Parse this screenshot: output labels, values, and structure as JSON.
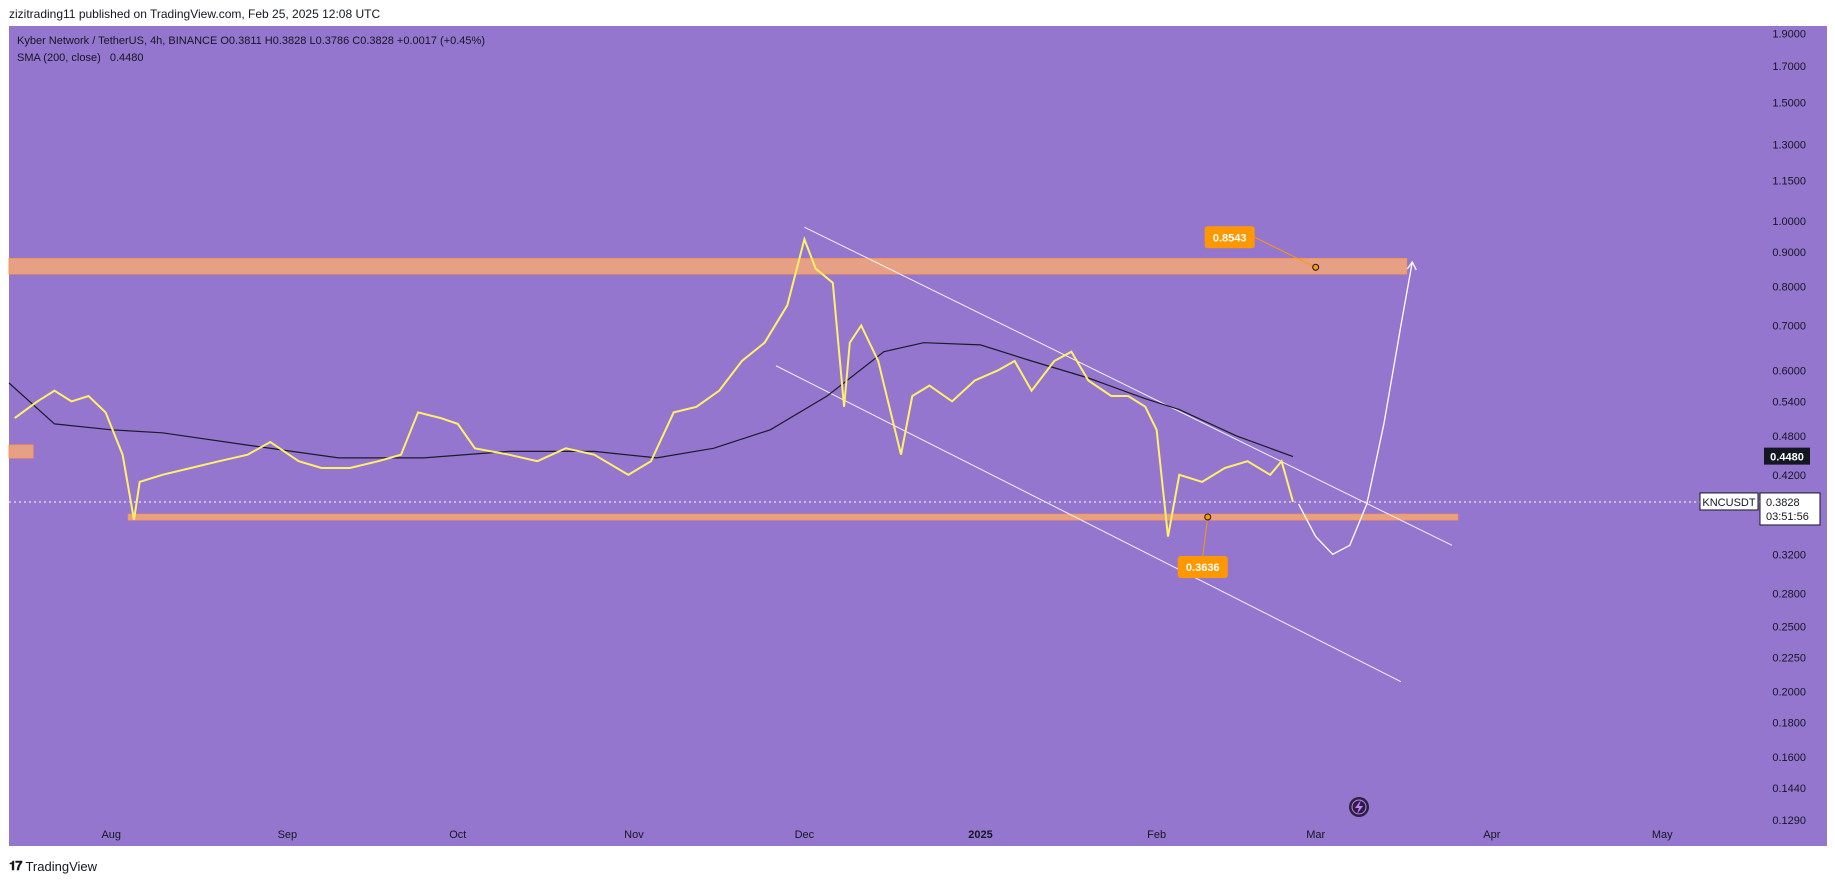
{
  "publisher_line": "zizitrading11 published on TradingView.com, Feb 25, 2025 12:08 UTC",
  "brand": "TradingView",
  "legend": {
    "symbol_line": "Kyber Network / TetherUS, 4h, BINANCE O0.3811 H0.3828 L0.3786 C0.3828 +0.0017 (+0.45%)",
    "sma_label": "SMA (200, close)",
    "sma_value": "0.4480"
  },
  "symbol_tag": "KNCUSDT",
  "last_price": "0.3828",
  "countdown": "03:51:56",
  "sma_price_tag": "0.4480",
  "annotations": {
    "target_label": "0.8543",
    "support_label": "0.3636"
  },
  "colors": {
    "background": "#9576cf",
    "candles": "#fff06b",
    "zones": "#f5a878",
    "label_bg": "#ff9800",
    "sma": "#1b1b2a",
    "channel": "#ffffff"
  },
  "chart_data": {
    "type": "line",
    "y_scale": "log",
    "ylim": [
      0.118,
      1.95
    ],
    "y_ticks": [
      "1.9000",
      "1.7000",
      "1.5000",
      "1.3000",
      "1.1500",
      "1.0000",
      "0.9000",
      "0.8000",
      "0.7000",
      "0.6000",
      "0.5400",
      "0.4800",
      "0.4200",
      "0.3600",
      "0.3200",
      "0.2800",
      "0.2500",
      "0.2250",
      "0.2000",
      "0.1800",
      "0.1600",
      "0.1440",
      "0.1290"
    ],
    "x_ticks": [
      "Aug",
      "Sep",
      "Oct",
      "Nov",
      "Dec",
      "2025",
      "Feb",
      "Mar",
      "Apr",
      "May"
    ],
    "x_tick_dates": [
      "2024-08-01",
      "2024-09-01",
      "2024-10-01",
      "2024-11-01",
      "2024-12-01",
      "2025-01-01",
      "2025-02-01",
      "2025-03-01",
      "2025-04-01",
      "2025-05-01"
    ],
    "x_range": [
      "2024-07-14",
      "2025-05-30"
    ],
    "series": [
      {
        "role": "price",
        "dates": [
          "2024-07-15",
          "2024-07-19",
          "2024-07-22",
          "2024-07-25",
          "2024-07-28",
          "2024-07-31",
          "2024-08-03",
          "2024-08-05",
          "2024-08-06",
          "2024-08-10",
          "2024-08-15",
          "2024-08-20",
          "2024-08-25",
          "2024-08-29",
          "2024-09-03",
          "2024-09-07",
          "2024-09-12",
          "2024-09-17",
          "2024-09-21",
          "2024-09-24",
          "2024-09-28",
          "2024-10-01",
          "2024-10-04",
          "2024-10-10",
          "2024-10-15",
          "2024-10-20",
          "2024-10-25",
          "2024-10-31",
          "2024-11-04",
          "2024-11-08",
          "2024-11-12",
          "2024-11-16",
          "2024-11-20",
          "2024-11-24",
          "2024-11-28",
          "2024-12-01",
          "2024-12-03",
          "2024-12-06",
          "2024-12-08",
          "2024-12-09",
          "2024-12-11",
          "2024-12-14",
          "2024-12-18",
          "2024-12-20",
          "2024-12-23",
          "2024-12-27",
          "2024-12-31",
          "2025-01-04",
          "2025-01-07",
          "2025-01-10",
          "2025-01-14",
          "2025-01-17",
          "2025-01-20",
          "2025-01-24",
          "2025-01-27",
          "2025-01-30",
          "2025-02-01",
          "2025-02-03",
          "2025-02-05",
          "2025-02-09",
          "2025-02-13",
          "2025-02-17",
          "2025-02-21",
          "2025-02-23",
          "2025-02-25"
        ],
        "values": [
          0.51,
          0.54,
          0.56,
          0.54,
          0.55,
          0.52,
          0.45,
          0.36,
          0.41,
          0.42,
          0.43,
          0.44,
          0.45,
          0.47,
          0.44,
          0.43,
          0.43,
          0.44,
          0.45,
          0.52,
          0.51,
          0.5,
          0.46,
          0.45,
          0.44,
          0.46,
          0.45,
          0.42,
          0.44,
          0.52,
          0.53,
          0.56,
          0.62,
          0.66,
          0.75,
          0.94,
          0.85,
          0.81,
          0.53,
          0.66,
          0.7,
          0.62,
          0.45,
          0.55,
          0.57,
          0.54,
          0.58,
          0.6,
          0.62,
          0.56,
          0.62,
          0.64,
          0.58,
          0.55,
          0.55,
          0.53,
          0.49,
          0.34,
          0.42,
          0.41,
          0.43,
          0.44,
          0.42,
          0.44,
          0.383
        ]
      },
      {
        "role": "sma",
        "dates": [
          "2024-07-14",
          "2024-07-22",
          "2024-08-01",
          "2024-08-10",
          "2024-08-25",
          "2024-09-10",
          "2024-09-25",
          "2024-10-10",
          "2024-10-25",
          "2024-11-05",
          "2024-11-15",
          "2024-11-25",
          "2024-12-05",
          "2024-12-15",
          "2024-12-22",
          "2025-01-01",
          "2025-01-10",
          "2025-01-20",
          "2025-01-30",
          "2025-02-05",
          "2025-02-15",
          "2025-02-25"
        ],
        "values": [
          0.575,
          0.5,
          0.49,
          0.485,
          0.465,
          0.445,
          0.445,
          0.455,
          0.455,
          0.445,
          0.46,
          0.49,
          0.55,
          0.64,
          0.66,
          0.655,
          0.62,
          0.585,
          0.545,
          0.525,
          0.48,
          0.447
        ]
      }
    ],
    "zones": [
      {
        "from": "2024-07-14",
        "to": "2025-03-17",
        "low": 0.835,
        "high": 0.88
      },
      {
        "from": "2024-08-04",
        "to": "2025-03-26",
        "low": 0.36,
        "high": 0.367
      },
      {
        "from": "2024-07-14",
        "to": "2024-07-15",
        "low": 0.445,
        "high": 0.465
      }
    ],
    "channel": [
      {
        "from_date": "2024-12-01",
        "from_value": 0.98,
        "to_date": "2025-03-25",
        "to_value": 0.33
      },
      {
        "from_date": "2024-11-26",
        "from_value": 0.61,
        "to_date": "2025-03-16",
        "to_value": 0.207
      }
    ],
    "projection": {
      "dates": [
        "2025-02-26",
        "2025-03-01",
        "2025-03-04",
        "2025-03-07",
        "2025-03-10",
        "2025-03-13",
        "2025-03-16",
        "2025-03-18"
      ],
      "values": [
        0.38,
        0.34,
        0.32,
        0.33,
        0.38,
        0.5,
        0.7,
        0.87
      ]
    },
    "markers": [
      {
        "date": "2025-03-01",
        "value": 0.8543
      },
      {
        "date": "2025-02-10",
        "value": 0.3636
      }
    ],
    "current_price": 0.3828
  }
}
